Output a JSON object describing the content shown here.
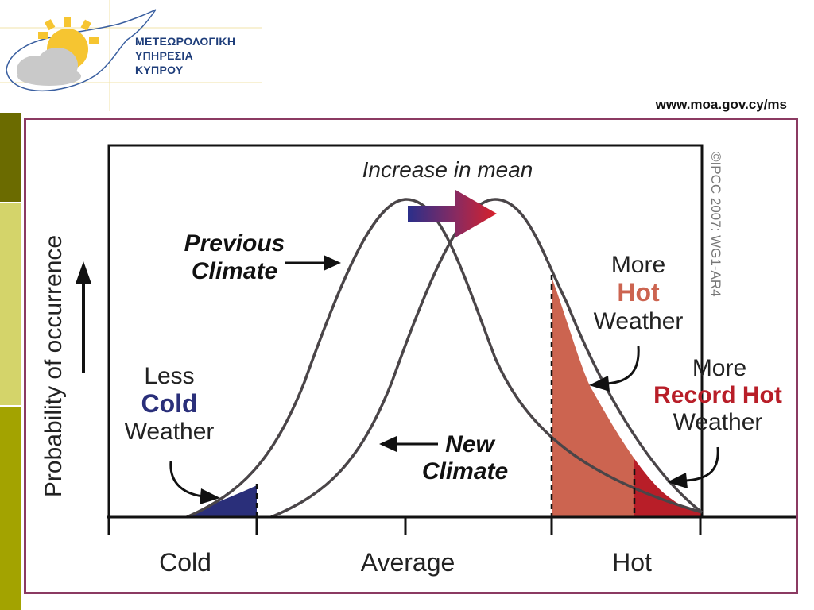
{
  "header": {
    "org_lines": [
      "ΜΕΤΕΩΡΟΛΟΓΙΚΗ",
      "ΥΠΗΡΕΣΙΑ",
      "ΚΥΠΡΟΥ"
    ],
    "website": "www.moa.gov.cy/ms"
  },
  "diagram": {
    "y_axis_label": "Probability of occurrence",
    "increase_label": "Increase in mean",
    "previous_climate": [
      "Previous",
      "Climate"
    ],
    "new_climate": [
      "New",
      "Climate"
    ],
    "less_cold": [
      "Less",
      "Cold",
      "Weather"
    ],
    "more_hot": [
      "More",
      "Hot",
      "Weather"
    ],
    "more_record_hot": [
      "More",
      "Record Hot",
      "Weather"
    ],
    "x_ticks": [
      "Cold",
      "Average",
      "Hot"
    ],
    "copyright": "©IPCC  2007: WG1-AR4"
  },
  "colors": {
    "frame": "#8b3a62",
    "cold_fill": "#2a2f7a",
    "hot_fill": "#cc6450",
    "record_hot_fill": "#b81e28",
    "curve": "#4a4548",
    "side_dark": "#6b6b00",
    "side_light": "#d4d46a",
    "side_mid": "#a3a300"
  }
}
